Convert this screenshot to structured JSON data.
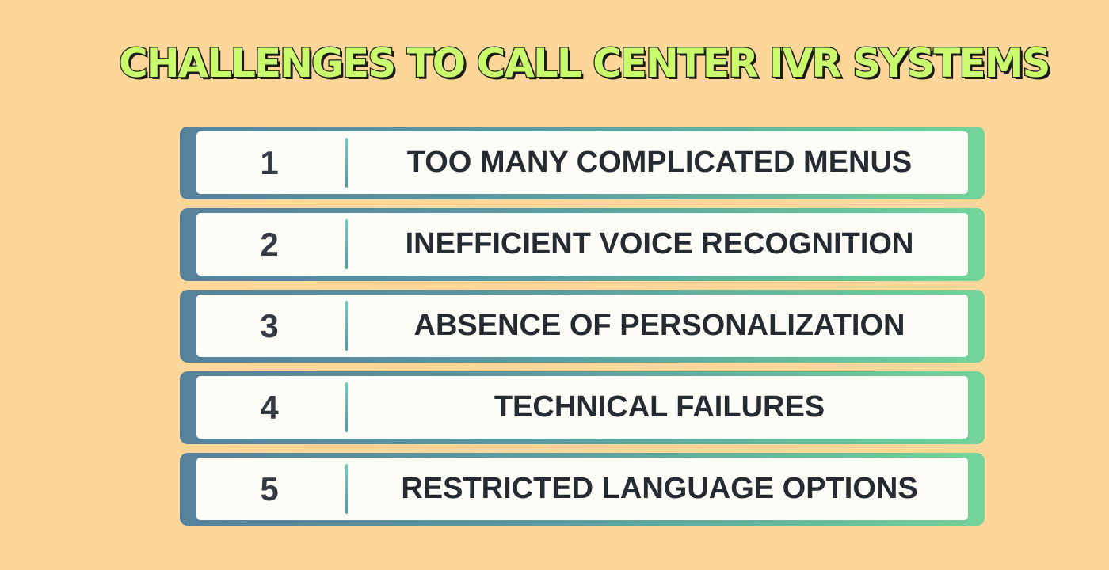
{
  "title": "CHALLENGES TO CALL CENTER IVR SYSTEMS",
  "colors": {
    "background": "#fdd699",
    "title_fill": "#c9fb6c",
    "title_outline": "#1b1b1b",
    "bar_gradient_start": "#56819c",
    "bar_gradient_end": "#73d49b",
    "card": "#fefcf7",
    "text": "#252b31"
  },
  "items": [
    {
      "number": "1",
      "label": "TOO MANY COMPLICATED MENUS"
    },
    {
      "number": "2",
      "label": "INEFFICIENT VOICE RECOGNITION"
    },
    {
      "number": "3",
      "label": "ABSENCE OF PERSONALIZATION"
    },
    {
      "number": "4",
      "label": "TECHNICAL FAILURES"
    },
    {
      "number": "5",
      "label": "RESTRICTED LANGUAGE OPTIONS"
    }
  ]
}
